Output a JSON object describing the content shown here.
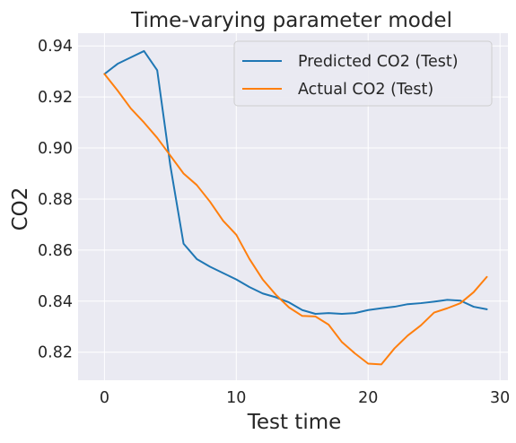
{
  "chart_data": {
    "type": "line",
    "title": "Time-varying parameter model",
    "xlabel": "Test time",
    "ylabel": "CO2",
    "xlim": [
      -2,
      30.6
    ],
    "ylim": [
      0.809,
      0.945
    ],
    "xticks": [
      0,
      10,
      20,
      30
    ],
    "yticks": [
      0.82,
      0.84,
      0.86,
      0.88,
      0.9,
      0.92,
      0.94
    ],
    "ytick_labels": [
      "0.82",
      "0.84",
      "0.86",
      "0.88",
      "0.90",
      "0.92",
      "0.94"
    ],
    "grid": true,
    "legend_position": "top-right",
    "x": [
      0,
      1,
      2,
      3,
      4,
      5,
      6,
      7,
      8,
      9,
      10,
      11,
      12,
      13,
      14,
      15,
      16,
      17,
      18,
      19,
      20,
      21,
      22,
      23,
      24,
      25,
      26,
      27,
      28,
      29
    ],
    "series": [
      {
        "name": "Predicted CO2 (Test)",
        "color": "#1f77b4",
        "values": [
          0.929,
          0.933,
          0.9355,
          0.938,
          0.9305,
          0.893,
          0.8625,
          0.8565,
          0.8535,
          0.851,
          0.8485,
          0.8455,
          0.843,
          0.8415,
          0.8395,
          0.8365,
          0.835,
          0.8353,
          0.835,
          0.8353,
          0.8365,
          0.8372,
          0.8378,
          0.8388,
          0.8392,
          0.8398,
          0.8405,
          0.8402,
          0.8378,
          0.8368
        ]
      },
      {
        "name": "Actual CO2 (Test)",
        "color": "#ff7f0e",
        "values": [
          0.929,
          0.9225,
          0.9155,
          0.91,
          0.904,
          0.897,
          0.89,
          0.8855,
          0.879,
          0.8715,
          0.866,
          0.8565,
          0.8485,
          0.8425,
          0.8375,
          0.8342,
          0.834,
          0.8308,
          0.824,
          0.8195,
          0.8155,
          0.8152,
          0.8215,
          0.8265,
          0.8305,
          0.8355,
          0.8372,
          0.8392,
          0.8435,
          0.8495
        ]
      }
    ]
  }
}
